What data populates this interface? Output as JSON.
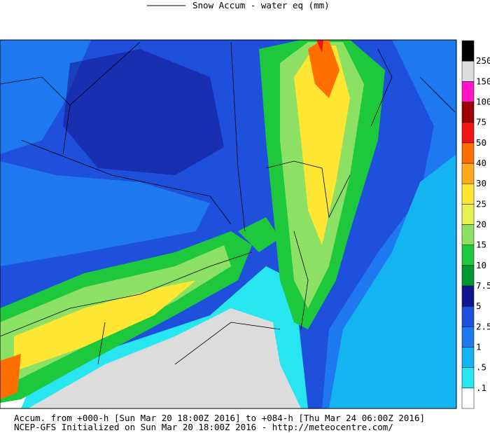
{
  "header": {
    "title": "Snow Accum - water eq (mm)"
  },
  "legend": {
    "labels": [
      ".1",
      ".5",
      "1",
      "2.5",
      "5",
      "7.5",
      "10",
      "15",
      "20",
      "25",
      "30",
      "40",
      "50",
      "75",
      "100",
      "150",
      "250"
    ],
    "colors": [
      "#ffffff",
      "#28e6f0",
      "#14b4f0",
      "#1e78f0",
      "#1e50dc",
      "#141490",
      "#009632",
      "#1ec83c",
      "#8ce164",
      "#e6f050",
      "#ffe632",
      "#ffaa1e",
      "#ff6e00",
      "#f01414",
      "#a00000",
      "#ff14c8",
      "#dcdcdc",
      "#000000"
    ]
  },
  "footer": {
    "line1": "Accum. from +000-h [Sun Mar 20 18:00Z 2016] to +084-h [Thu Mar 24 06:00Z 2016]",
    "line2": "NCEP-GFS Initialized on Sun Mar 20 18:00Z 2016 - http://meteocentre.com/"
  }
}
